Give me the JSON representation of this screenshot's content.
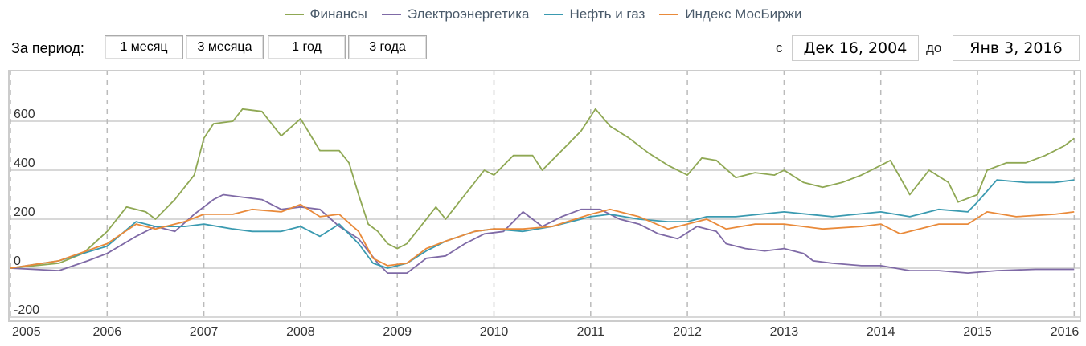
{
  "legend": [
    {
      "name": "Финансы",
      "color": "#8fa854"
    },
    {
      "name": "Электроэнергетика",
      "color": "#7f6aa6"
    },
    {
      "name": "Нефть и газ",
      "color": "#3a9ab0"
    },
    {
      "name": "Индекс МосБиржи",
      "color": "#e98a3a"
    }
  ],
  "controls": {
    "period_label": "За период:",
    "buttons": [
      "1 месяц",
      "3 месяца",
      "1 год",
      "3 года"
    ],
    "from_label": "с",
    "from_value": "Дек 16, 2004",
    "to_label": "до",
    "to_value": "Янв 3, 2016"
  },
  "chart_data": {
    "type": "line",
    "grid": true,
    "legend_position": "top",
    "xlim": [
      2005,
      2016.05
    ],
    "ylim": [
      -230,
      780
    ],
    "x_ticks": [
      "2005",
      "2006",
      "2007",
      "2008",
      "2009",
      "2010",
      "2011",
      "2012",
      "2013",
      "2014",
      "2015",
      "2016"
    ],
    "y_ticks": [
      -200,
      0,
      200,
      400,
      600
    ],
    "series": [
      {
        "name": "Финансы",
        "color": "#8fa854",
        "points": [
          [
            2005,
            0
          ],
          [
            2005.5,
            20
          ],
          [
            2005.75,
            60
          ],
          [
            2006,
            150
          ],
          [
            2006.2,
            250
          ],
          [
            2006.4,
            230
          ],
          [
            2006.5,
            200
          ],
          [
            2006.7,
            280
          ],
          [
            2006.9,
            380
          ],
          [
            2007,
            530
          ],
          [
            2007.1,
            590
          ],
          [
            2007.3,
            600
          ],
          [
            2007.4,
            650
          ],
          [
            2007.6,
            640
          ],
          [
            2007.8,
            540
          ],
          [
            2008,
            610
          ],
          [
            2008.2,
            480
          ],
          [
            2008.4,
            480
          ],
          [
            2008.5,
            430
          ],
          [
            2008.6,
            300
          ],
          [
            2008.7,
            180
          ],
          [
            2008.8,
            150
          ],
          [
            2008.9,
            100
          ],
          [
            2009,
            80
          ],
          [
            2009.1,
            100
          ],
          [
            2009.2,
            150
          ],
          [
            2009.4,
            250
          ],
          [
            2009.5,
            200
          ],
          [
            2009.7,
            300
          ],
          [
            2009.9,
            400
          ],
          [
            2010,
            380
          ],
          [
            2010.2,
            460
          ],
          [
            2010.4,
            460
          ],
          [
            2010.5,
            400
          ],
          [
            2010.7,
            480
          ],
          [
            2010.9,
            560
          ],
          [
            2011.05,
            650
          ],
          [
            2011.2,
            580
          ],
          [
            2011.4,
            530
          ],
          [
            2011.6,
            470
          ],
          [
            2011.8,
            420
          ],
          [
            2012,
            380
          ],
          [
            2012.15,
            450
          ],
          [
            2012.3,
            440
          ],
          [
            2012.5,
            370
          ],
          [
            2012.7,
            390
          ],
          [
            2012.9,
            380
          ],
          [
            2013,
            400
          ],
          [
            2013.2,
            350
          ],
          [
            2013.4,
            330
          ],
          [
            2013.6,
            350
          ],
          [
            2013.8,
            380
          ],
          [
            2014,
            420
          ],
          [
            2014.1,
            440
          ],
          [
            2014.2,
            370
          ],
          [
            2014.3,
            300
          ],
          [
            2014.5,
            400
          ],
          [
            2014.7,
            350
          ],
          [
            2014.8,
            270
          ],
          [
            2015,
            300
          ],
          [
            2015.1,
            400
          ],
          [
            2015.3,
            430
          ],
          [
            2015.5,
            430
          ],
          [
            2015.7,
            460
          ],
          [
            2015.9,
            500
          ],
          [
            2016,
            530
          ]
        ]
      },
      {
        "name": "Электроэнергетика",
        "color": "#7f6aa6",
        "points": [
          [
            2005,
            0
          ],
          [
            2005.5,
            -10
          ],
          [
            2005.8,
            30
          ],
          [
            2006,
            60
          ],
          [
            2006.3,
            130
          ],
          [
            2006.5,
            170
          ],
          [
            2006.7,
            150
          ],
          [
            2006.9,
            220
          ],
          [
            2007.1,
            280
          ],
          [
            2007.2,
            300
          ],
          [
            2007.4,
            290
          ],
          [
            2007.6,
            280
          ],
          [
            2007.8,
            240
          ],
          [
            2008,
            250
          ],
          [
            2008.2,
            240
          ],
          [
            2008.4,
            170
          ],
          [
            2008.6,
            120
          ],
          [
            2008.8,
            20
          ],
          [
            2008.9,
            -20
          ],
          [
            2009.1,
            -20
          ],
          [
            2009.3,
            40
          ],
          [
            2009.5,
            50
          ],
          [
            2009.7,
            100
          ],
          [
            2009.9,
            140
          ],
          [
            2010.1,
            150
          ],
          [
            2010.3,
            230
          ],
          [
            2010.5,
            170
          ],
          [
            2010.7,
            210
          ],
          [
            2010.9,
            240
          ],
          [
            2011.1,
            240
          ],
          [
            2011.3,
            200
          ],
          [
            2011.5,
            180
          ],
          [
            2011.7,
            140
          ],
          [
            2011.9,
            120
          ],
          [
            2012.1,
            170
          ],
          [
            2012.3,
            150
          ],
          [
            2012.4,
            100
          ],
          [
            2012.6,
            80
          ],
          [
            2012.8,
            70
          ],
          [
            2013,
            80
          ],
          [
            2013.2,
            60
          ],
          [
            2013.3,
            30
          ],
          [
            2013.5,
            20
          ],
          [
            2013.8,
            10
          ],
          [
            2014,
            10
          ],
          [
            2014.3,
            -10
          ],
          [
            2014.6,
            -10
          ],
          [
            2014.9,
            -20
          ],
          [
            2015.2,
            -10
          ],
          [
            2015.6,
            -5
          ],
          [
            2016,
            -5
          ]
        ]
      },
      {
        "name": "Нефть и газ",
        "color": "#3a9ab0",
        "points": [
          [
            2005,
            0
          ],
          [
            2005.5,
            30
          ],
          [
            2006,
            90
          ],
          [
            2006.3,
            190
          ],
          [
            2006.5,
            170
          ],
          [
            2006.8,
            170
          ],
          [
            2007,
            180
          ],
          [
            2007.3,
            160
          ],
          [
            2007.5,
            150
          ],
          [
            2007.8,
            150
          ],
          [
            2008,
            170
          ],
          [
            2008.2,
            130
          ],
          [
            2008.4,
            180
          ],
          [
            2008.6,
            100
          ],
          [
            2008.75,
            20
          ],
          [
            2008.9,
            0
          ],
          [
            2009.1,
            20
          ],
          [
            2009.3,
            70
          ],
          [
            2009.5,
            110
          ],
          [
            2009.8,
            150
          ],
          [
            2010,
            160
          ],
          [
            2010.3,
            150
          ],
          [
            2010.6,
            170
          ],
          [
            2011,
            210
          ],
          [
            2011.2,
            220
          ],
          [
            2011.5,
            200
          ],
          [
            2011.8,
            190
          ],
          [
            2012,
            190
          ],
          [
            2012.2,
            210
          ],
          [
            2012.5,
            210
          ],
          [
            2013,
            230
          ],
          [
            2013.5,
            210
          ],
          [
            2014,
            230
          ],
          [
            2014.3,
            210
          ],
          [
            2014.6,
            240
          ],
          [
            2014.9,
            230
          ],
          [
            2015,
            270
          ],
          [
            2015.2,
            360
          ],
          [
            2015.5,
            350
          ],
          [
            2015.8,
            350
          ],
          [
            2016,
            360
          ]
        ]
      },
      {
        "name": "Индекс МосБиржи",
        "color": "#e98a3a",
        "points": [
          [
            2005,
            0
          ],
          [
            2005.5,
            30
          ],
          [
            2006,
            100
          ],
          [
            2006.3,
            180
          ],
          [
            2006.5,
            160
          ],
          [
            2006.8,
            190
          ],
          [
            2007,
            220
          ],
          [
            2007.3,
            220
          ],
          [
            2007.5,
            240
          ],
          [
            2007.8,
            230
          ],
          [
            2008,
            260
          ],
          [
            2008.2,
            210
          ],
          [
            2008.4,
            220
          ],
          [
            2008.6,
            150
          ],
          [
            2008.75,
            40
          ],
          [
            2008.9,
            10
          ],
          [
            2009.1,
            20
          ],
          [
            2009.3,
            80
          ],
          [
            2009.5,
            110
          ],
          [
            2009.8,
            150
          ],
          [
            2010,
            160
          ],
          [
            2010.3,
            160
          ],
          [
            2010.6,
            170
          ],
          [
            2011,
            220
          ],
          [
            2011.2,
            240
          ],
          [
            2011.5,
            210
          ],
          [
            2011.8,
            160
          ],
          [
            2012,
            180
          ],
          [
            2012.2,
            200
          ],
          [
            2012.4,
            160
          ],
          [
            2012.7,
            180
          ],
          [
            2013,
            180
          ],
          [
            2013.4,
            160
          ],
          [
            2013.8,
            170
          ],
          [
            2014,
            180
          ],
          [
            2014.2,
            140
          ],
          [
            2014.6,
            180
          ],
          [
            2014.9,
            180
          ],
          [
            2015.1,
            230
          ],
          [
            2015.4,
            210
          ],
          [
            2015.8,
            220
          ],
          [
            2016,
            230
          ]
        ]
      }
    ]
  }
}
